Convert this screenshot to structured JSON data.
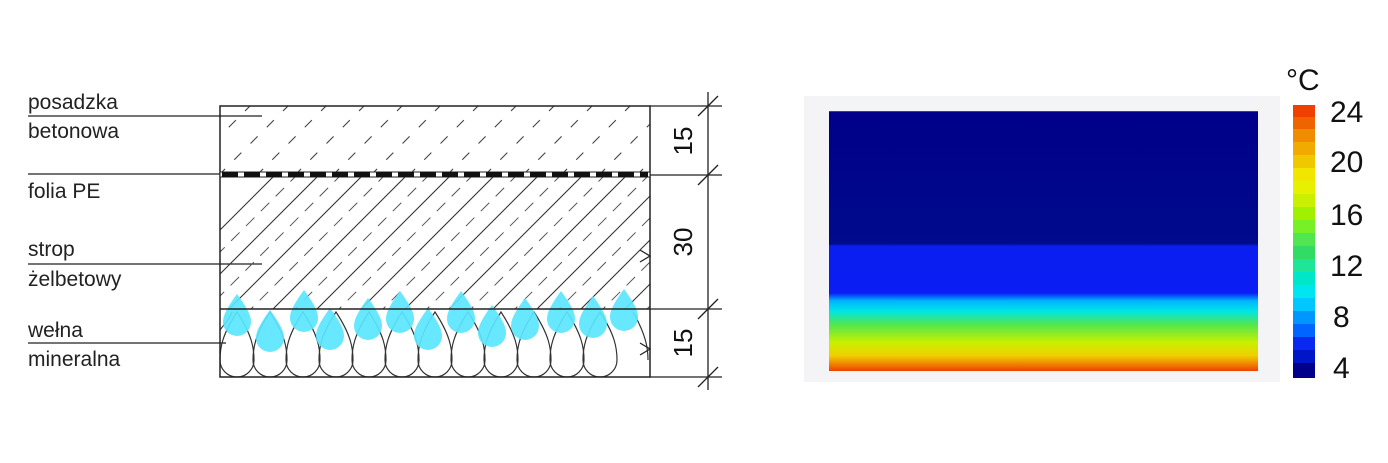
{
  "cross_section": {
    "labels": [
      {
        "line1": "posadzka",
        "line2": "betonowa"
      },
      {
        "line1": "folia PE",
        "line2": ""
      },
      {
        "line1": "strop",
        "line2": "żelbetowy"
      },
      {
        "line1": "wełna",
        "line2": "mineralna"
      }
    ],
    "dimensions": [
      "15",
      "30",
      "15"
    ]
  },
  "thermal_map": {
    "unit": "°C",
    "scale_ticks": [
      "24",
      "20",
      "16",
      "12",
      "8",
      "4"
    ],
    "colors": {
      "cold": "#00008a",
      "blue": "#0a1ef0",
      "cyan": "#00e6f0",
      "green": "#50e650",
      "yellow": "#f0f000",
      "orange": "#f08c00",
      "red": "#f04000",
      "droplet": "#5ae6ff"
    }
  }
}
